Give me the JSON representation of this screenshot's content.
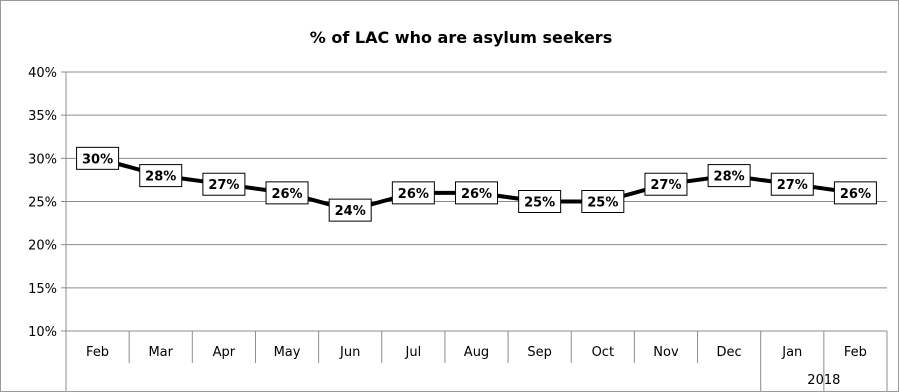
{
  "chart_data": {
    "type": "line",
    "title": "% of LAC who are asylum seekers",
    "xlabel": "",
    "ylabel": "",
    "categories": [
      "Feb",
      "Mar",
      "Apr",
      "May",
      "Jun",
      "Jul",
      "Aug",
      "Sep",
      "Oct",
      "Nov",
      "Dec",
      "Jan",
      "Feb"
    ],
    "year_group_label": "2018",
    "year_group_start_index": 11,
    "series": [
      {
        "values": [
          30,
          28,
          27,
          26,
          24,
          26,
          26,
          25,
          25,
          27,
          28,
          27,
          26
        ],
        "labels": [
          "30%",
          "28%",
          "27%",
          "26%",
          "24%",
          "26%",
          "26%",
          "25%",
          "25%",
          "27%",
          "28%",
          "27%",
          "26%"
        ],
        "color": "#000000"
      }
    ],
    "ylim": [
      10,
      40
    ],
    "yticks": [
      10,
      15,
      20,
      25,
      30,
      35,
      40
    ],
    "ytick_labels": [
      "10%",
      "15%",
      "20%",
      "25%",
      "30%",
      "35%",
      "40%"
    ],
    "grid": true,
    "legend": "none"
  }
}
